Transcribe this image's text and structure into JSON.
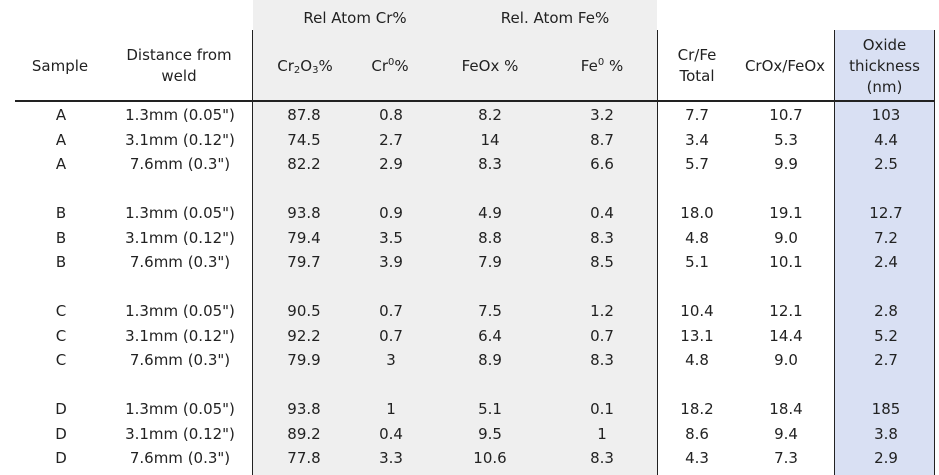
{
  "header": {
    "group_cr": "Rel Atom Cr%",
    "group_fe": "Rel. Atom Fe%",
    "sample": "Sample",
    "distance_line1": "Distance from",
    "distance_line2": "weld",
    "cr2o3_cr": "Cr",
    "cr2o3_2": "2",
    "cr2o3_o": "O",
    "cr2o3_3": "3",
    "cr2o3_pct": "%",
    "cr0_base": "Cr",
    "cr0_sup": "0",
    "cr0_pct": "%",
    "feox": "FeOx %",
    "fe0_base": "Fe",
    "fe0_sup": "0",
    "fe0_pct": " %",
    "crfe_line1": "Cr/Fe",
    "crfe_line2": "Total",
    "crox_feox": "CrOx/FeOx",
    "oxide_line1": "Oxide",
    "oxide_line2": "thickness",
    "oxide_line3": "(nm)"
  },
  "rows": [
    [
      "A",
      "1.3mm (0.05\")",
      "87.8",
      "0.8",
      "8.2",
      "3.2",
      "7.7",
      "10.7",
      "103"
    ],
    [
      "A",
      "3.1mm (0.12\")",
      "74.5",
      "2.7",
      "14",
      "8.7",
      "3.4",
      "5.3",
      "4.4"
    ],
    [
      "A",
      "7.6mm (0.3\")",
      "82.2",
      "2.9",
      "8.3",
      "6.6",
      "5.7",
      "9.9",
      "2.5"
    ],
    [
      "B",
      "1.3mm (0.05\")",
      "93.8",
      "0.9",
      "4.9",
      "0.4",
      "18.0",
      "19.1",
      "12.7"
    ],
    [
      "B",
      "3.1mm (0.12\")",
      "79.4",
      "3.5",
      "8.8",
      "8.3",
      "4.8",
      "9.0",
      "7.2"
    ],
    [
      "B",
      "7.6mm (0.3\")",
      "79.7",
      "3.9",
      "7.9",
      "8.5",
      "5.1",
      "10.1",
      "2.4"
    ],
    [
      "C",
      "1.3mm (0.05\")",
      "90.5",
      "0.7",
      "7.5",
      "1.2",
      "10.4",
      "12.1",
      "2.8"
    ],
    [
      "C",
      "3.1mm (0.12\")",
      "92.2",
      "0.7",
      "6.4",
      "0.7",
      "13.1",
      "14.4",
      "5.2"
    ],
    [
      "C",
      "7.6mm (0.3\")",
      "79.9",
      "3",
      "8.9",
      "8.3",
      "4.8",
      "9.0",
      "2.7"
    ],
    [
      "D",
      "1.3mm (0.05\")",
      "93.8",
      "1",
      "5.1",
      "0.1",
      "18.2",
      "18.4",
      "185"
    ],
    [
      "D",
      "3.1mm (0.12\")",
      "89.2",
      "0.4",
      "9.5",
      "1",
      "8.6",
      "9.4",
      "3.8"
    ],
    [
      "D",
      "7.6mm (0.3\")",
      "77.8",
      "3.3",
      "10.6",
      "8.3",
      "4.3",
      "7.3",
      "2.9"
    ]
  ],
  "colors": {
    "shade": "#efefef",
    "oxide_highlight": "#d9e0f3",
    "rule": "#222222"
  }
}
